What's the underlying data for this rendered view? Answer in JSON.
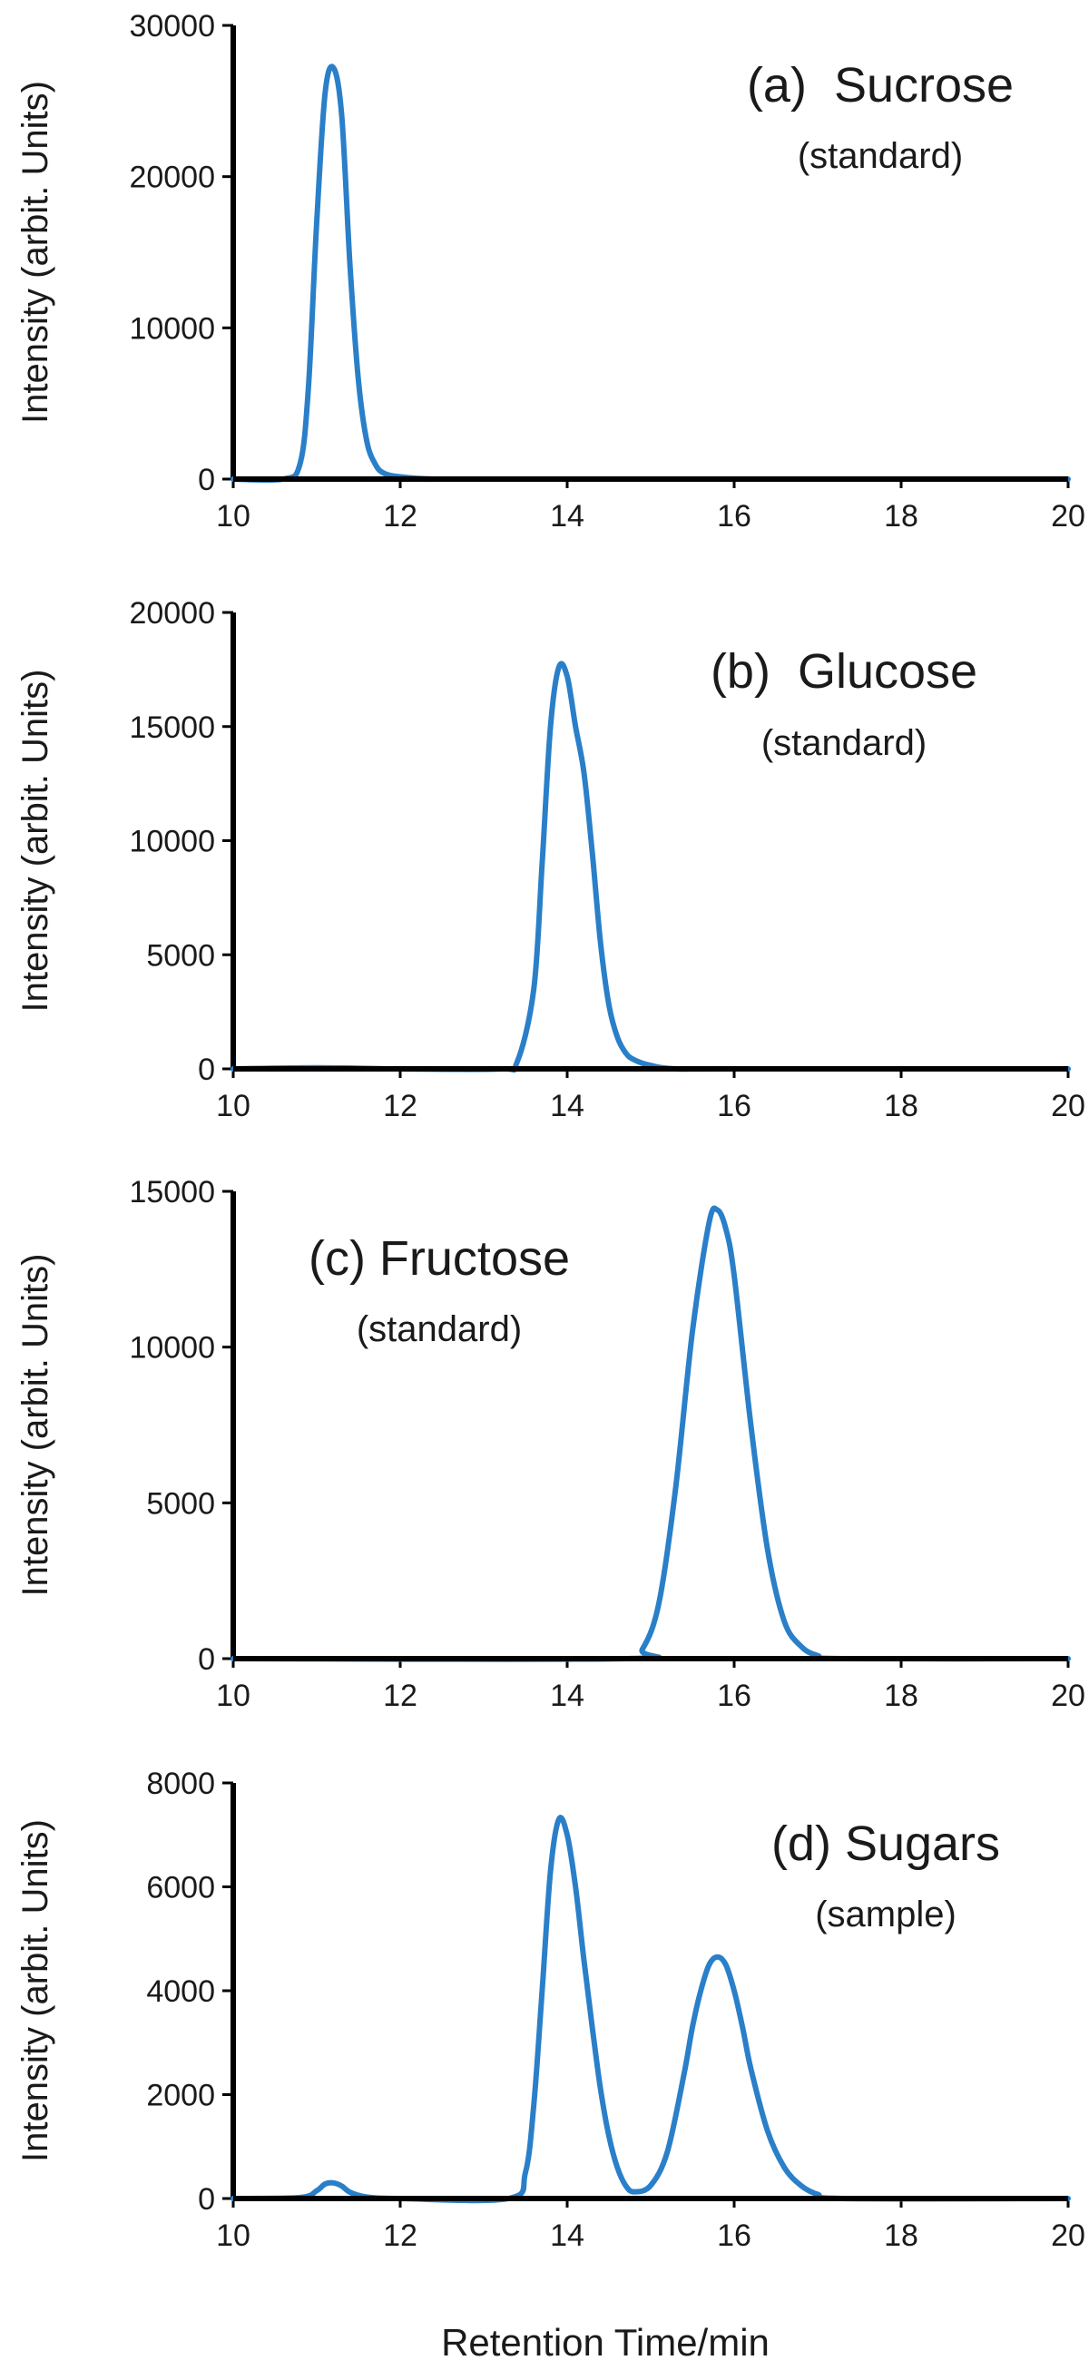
{
  "chart_data": [
    {
      "type": "line",
      "title": "",
      "xlabel": "",
      "ylabel": "Intensity (arbit. Units)",
      "xlim": [
        10,
        20
      ],
      "ylim": [
        0,
        30000
      ],
      "xticks": [
        10,
        12,
        14,
        16,
        18,
        20
      ],
      "yticks": [
        0,
        10000,
        20000,
        30000
      ],
      "annotation": "(a)  Sucrose",
      "annotation_sub": "(standard)",
      "grid": false,
      "line_color": "#2a7fc9",
      "series": [
        {
          "x": [
            10,
            10.6,
            10.8,
            10.9,
            11.0,
            11.1,
            11.2,
            11.3,
            11.4,
            11.5,
            11.6,
            11.7,
            11.8,
            12.0,
            12.4,
            13,
            20
          ],
          "y": [
            0,
            0,
            1000,
            6000,
            17000,
            25500,
            27200,
            24000,
            14000,
            6500,
            2500,
            1000,
            400,
            150,
            0,
            0,
            0
          ]
        }
      ]
    },
    {
      "type": "line",
      "title": "",
      "xlabel": "",
      "ylabel": "Intensity (arbit. Units)",
      "xlim": [
        10,
        20
      ],
      "ylim": [
        0,
        20000
      ],
      "xticks": [
        10,
        12,
        14,
        16,
        18,
        20
      ],
      "yticks": [
        0,
        5000,
        10000,
        15000,
        20000
      ],
      "annotation": "(b)  Glucose",
      "annotation_sub": "(standard)",
      "grid": false,
      "line_color": "#2a7fc9",
      "series": [
        {
          "x": [
            10,
            11,
            12,
            13.2,
            13.4,
            13.6,
            13.7,
            13.8,
            13.9,
            14.0,
            14.1,
            14.2,
            14.3,
            14.4,
            14.5,
            14.6,
            14.7,
            14.8,
            15.0,
            15.3,
            16,
            20
          ],
          "y": [
            0,
            50,
            0,
            0,
            300,
            3500,
            9000,
            15000,
            17600,
            17200,
            15000,
            13000,
            9500,
            5500,
            2800,
            1400,
            700,
            400,
            150,
            0,
            0,
            0
          ]
        }
      ]
    },
    {
      "type": "line",
      "title": "",
      "xlabel": "",
      "ylabel": "Intensity (arbit. Units)",
      "xlim": [
        10,
        20
      ],
      "ylim": [
        0,
        15000
      ],
      "xticks": [
        10,
        12,
        14,
        16,
        18,
        20
      ],
      "yticks": [
        0,
        5000,
        10000,
        15000
      ],
      "annotation": "(c) Fructose",
      "annotation_sub": "(standard)",
      "grid": false,
      "line_color": "#2a7fc9",
      "series": [
        {
          "x": [
            10,
            14.7,
            14.9,
            15.1,
            15.3,
            15.5,
            15.7,
            15.8,
            15.9,
            16.0,
            16.2,
            16.4,
            16.6,
            16.8,
            17.0,
            17.3,
            20
          ],
          "y": [
            0,
            0,
            300,
            1800,
            5500,
            10500,
            14000,
            14400,
            13800,
            12300,
            7500,
            3500,
            1200,
            400,
            100,
            0,
            0
          ]
        }
      ]
    },
    {
      "type": "line",
      "title": "",
      "xlabel": "Retention Time/min",
      "ylabel": "Intensity (arbit. Units)",
      "xlim": [
        10,
        20
      ],
      "ylim": [
        0,
        8000
      ],
      "xticks": [
        10,
        12,
        14,
        16,
        18,
        20
      ],
      "yticks": [
        0,
        2000,
        4000,
        6000,
        8000
      ],
      "annotation": "(d) Sugars",
      "annotation_sub": "(sample)",
      "grid": false,
      "line_color": "#2a7fc9",
      "series": [
        {
          "x": [
            10,
            10.8,
            11.0,
            11.1,
            11.2,
            11.3,
            11.4,
            11.6,
            12.0,
            13.3,
            13.5,
            13.6,
            13.7,
            13.8,
            13.9,
            14.0,
            14.1,
            14.2,
            14.3,
            14.4,
            14.5,
            14.6,
            14.7,
            14.8,
            15.0,
            15.2,
            15.4,
            15.5,
            15.6,
            15.7,
            15.8,
            15.9,
            16.0,
            16.1,
            16.2,
            16.4,
            16.6,
            16.8,
            17.0,
            17.3,
            20
          ],
          "y": [
            0,
            20,
            150,
            280,
            300,
            240,
            120,
            30,
            0,
            0,
            500,
            1800,
            4000,
            6300,
            7300,
            7000,
            6000,
            4600,
            3300,
            2100,
            1200,
            600,
            250,
            130,
            250,
            900,
            2400,
            3300,
            4000,
            4500,
            4650,
            4500,
            4000,
            3300,
            2500,
            1300,
            600,
            250,
            80,
            0,
            0
          ]
        }
      ]
    }
  ]
}
